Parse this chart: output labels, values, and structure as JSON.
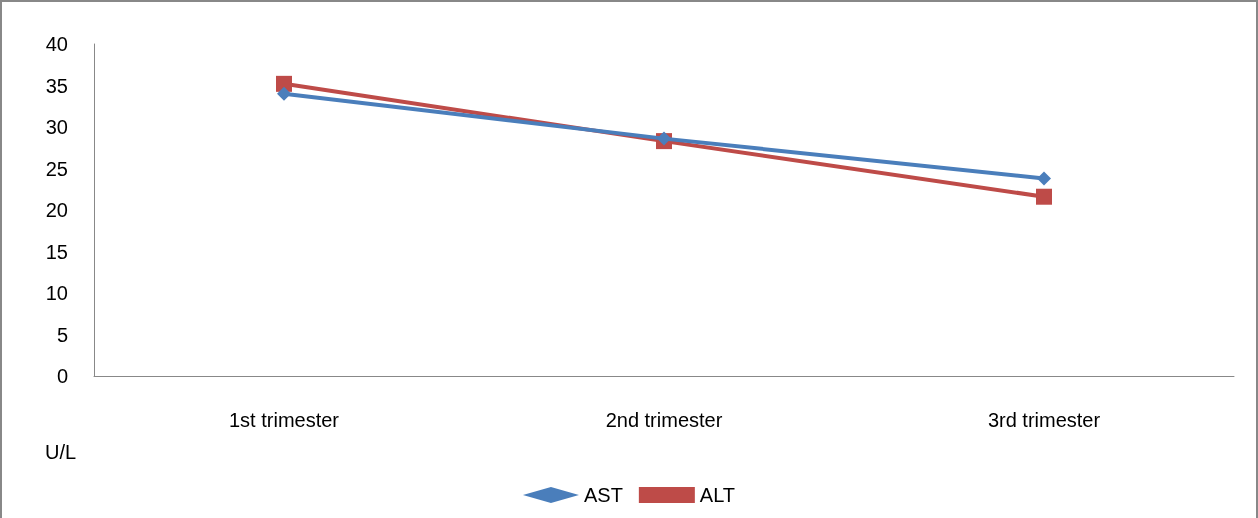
{
  "chart_data": {
    "type": "line",
    "categories": [
      "1st trimester",
      "2nd trimester",
      "3rd trimester"
    ],
    "ylabel": "U/L",
    "ylim": [
      0,
      40
    ],
    "yticks": [
      0,
      5,
      10,
      15,
      20,
      25,
      30,
      35,
      40
    ],
    "grid": false,
    "legend": "bottom",
    "line_style": "solid",
    "series": [
      {
        "name": "AST",
        "color": "#4a7ebb",
        "marker": "diamond",
        "values": [
          34.0,
          28.6,
          23.8
        ]
      },
      {
        "name": "ALT",
        "color": "#be4b48",
        "marker": "square",
        "values": [
          35.2,
          28.3,
          21.6
        ]
      }
    ]
  }
}
